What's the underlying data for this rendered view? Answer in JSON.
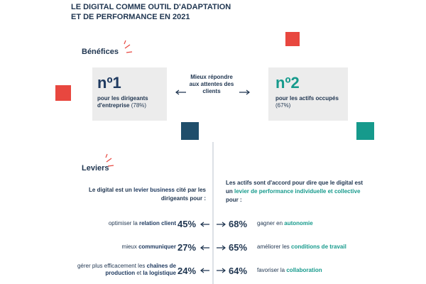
{
  "header": {
    "title_lines": [
      "LE DIGITAL COMME OUTIL D'ADAPTATION",
      "ET DE PERFORMANCE EN 2021"
    ]
  },
  "benefits": {
    "label": "Bénéfices",
    "cards": [
      {
        "rank": "nº1",
        "text": "pour les dirigeants d'entreprise",
        "share": "(78%)"
      },
      {
        "rank": "nº2",
        "text": "pour les actifs occupés",
        "share": "(67%)"
      }
    ],
    "center": "Mieux répondre aux attentes des clients"
  },
  "levers": {
    "label": "Leviers",
    "left": {
      "heading": [
        "Le digital est un ",
        "levier business",
        " cité par les dirigeants pour :"
      ],
      "rows": [
        {
          "text": [
            "optimiser la ",
            "relation client"
          ],
          "percent": "45%"
        },
        {
          "text": [
            "mieux ",
            "communiquer"
          ],
          "percent": "27%"
        },
        {
          "text": [
            "gérer plus efficacement les ",
            "chaînes de production",
            " et ",
            "la logistique"
          ],
          "percent": "24%"
        }
      ]
    },
    "right": {
      "heading": [
        "Les actifs sont d'accord pour dire que le digital est un ",
        "levier de performance individuelle et collective",
        " pour :"
      ],
      "rows": [
        {
          "text": [
            "gagner en ",
            "autonomie"
          ],
          "percent": "68%"
        },
        {
          "text": [
            "améliorer les ",
            "conditions de travail"
          ],
          "percent": "65%"
        },
        {
          "text": [
            "favoriser la ",
            "collaboration"
          ],
          "percent": "64%"
        }
      ]
    }
  }
}
